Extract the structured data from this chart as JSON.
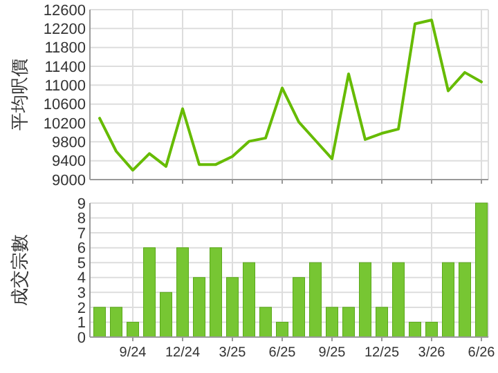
{
  "chart_data": [
    {
      "type": "line",
      "ylabel": "平均呎價",
      "categories": [
        null,
        null,
        null,
        null,
        null,
        null,
        null,
        null,
        null,
        null,
        null,
        null,
        null,
        null,
        null,
        null,
        null,
        null,
        null,
        null,
        null,
        null,
        null,
        null
      ],
      "series": [
        {
          "color": "#66bb00",
          "values": [
            10300,
            9600,
            9200,
            9550,
            9280,
            10500,
            9320,
            9320,
            9490,
            9810,
            9880,
            10940,
            10220,
            9830,
            9440,
            11240,
            9850,
            9980,
            10070,
            12300,
            12380,
            10880,
            11270,
            11070
          ]
        }
      ],
      "ylim": [
        9000,
        12600
      ],
      "yticks": [
        9000,
        9400,
        9800,
        10200,
        10600,
        11000,
        11400,
        11800,
        12200,
        12600
      ],
      "grid": true,
      "tick_labels": "y"
    },
    {
      "type": "bar",
      "ylabel": "成交宗數",
      "categories": [
        null,
        null,
        "9/24",
        null,
        null,
        "12/24",
        null,
        null,
        "3/25",
        null,
        null,
        "6/25",
        null,
        null,
        "9/25",
        null,
        null,
        "12/25",
        null,
        null,
        "3/26",
        null,
        null,
        "6/26"
      ],
      "series": [
        {
          "color": "#77c633",
          "values": [
            2,
            2,
            1,
            6,
            3,
            6,
            4,
            6,
            4,
            5,
            2,
            1,
            4,
            5,
            2,
            2,
            5,
            2,
            5,
            1,
            1,
            5,
            5,
            9
          ]
        }
      ],
      "ylim": [
        0,
        9
      ],
      "yticks": [
        0,
        1,
        2,
        3,
        4,
        5,
        6,
        7,
        8,
        9
      ],
      "grid": true
    }
  ]
}
